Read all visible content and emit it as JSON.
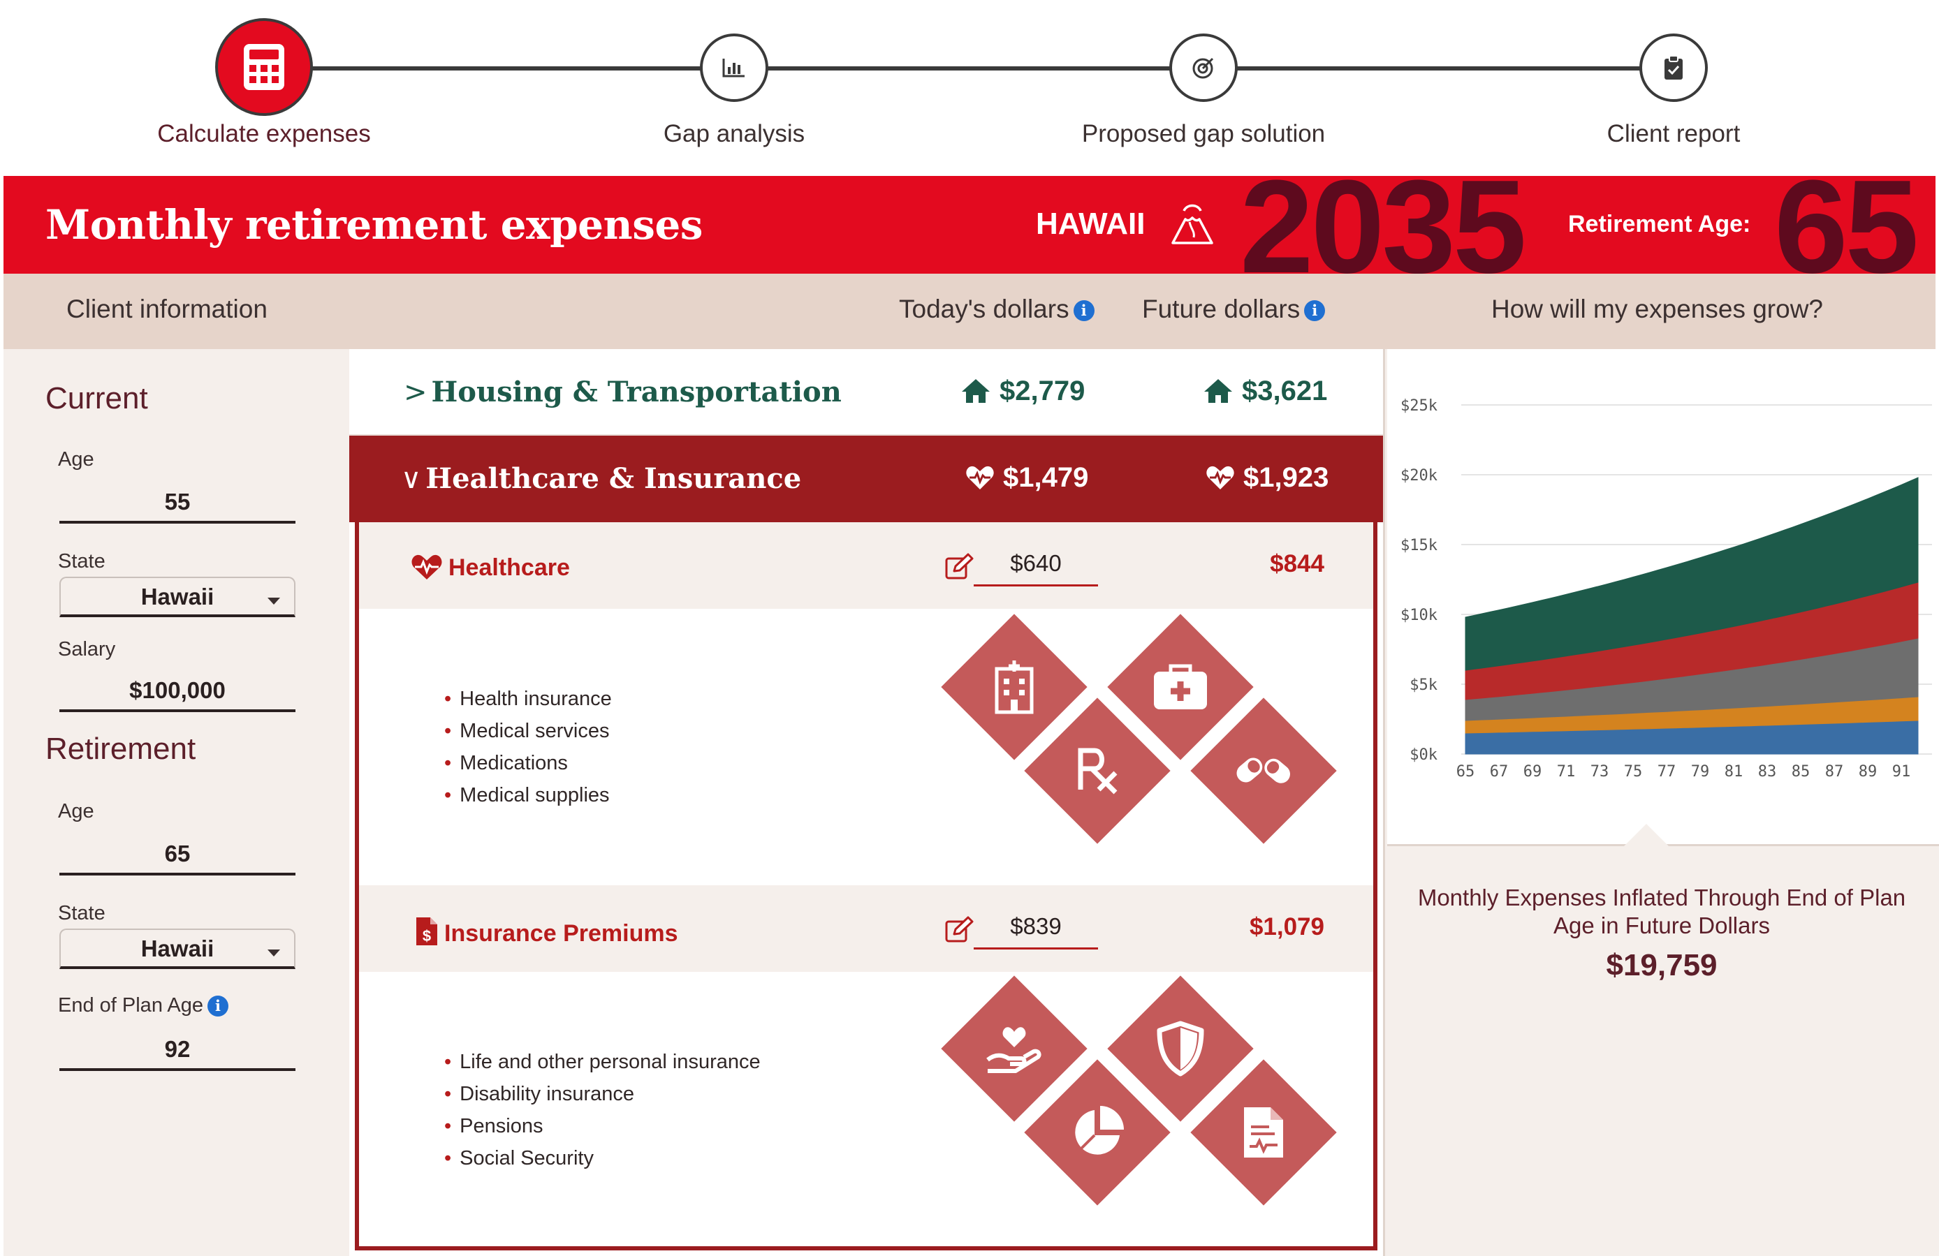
{
  "stepper": {
    "steps": [
      {
        "label": "Calculate expenses",
        "icon": "calculator-icon",
        "active": true
      },
      {
        "label": "Gap analysis",
        "icon": "bar-chart-icon",
        "active": false
      },
      {
        "label": "Proposed gap solution",
        "icon": "target-icon",
        "active": false
      },
      {
        "label": "Client report",
        "icon": "clipboard-check-icon",
        "active": false
      }
    ]
  },
  "header": {
    "title": "Monthly retirement expenses",
    "state": "HAWAII",
    "state_icon": "volcano-icon",
    "year": "2035",
    "retirement_age_label": "Retirement Age:",
    "retirement_age": "65",
    "color": "#e30a1f"
  },
  "columns": {
    "client_info": "Client information",
    "todays_dollars": "Today's dollars",
    "future_dollars": "Future dollars",
    "growth": "How will my expenses grow?"
  },
  "client": {
    "current": {
      "title": "Current",
      "age_label": "Age",
      "age": "55",
      "state_label": "State",
      "state": "Hawaii",
      "salary_label": "Salary",
      "salary": "$100,000"
    },
    "retirement": {
      "title": "Retirement",
      "age_label": "Age",
      "age": "65",
      "state_label": "State",
      "state": "Hawaii",
      "end_age_label": "End of Plan Age",
      "end_age": "92"
    }
  },
  "categories": {
    "housing": {
      "label": "Housing & Transportation",
      "today": "$2,779",
      "future": "$3,621",
      "icon": "home-icon",
      "color": "#1d5a4a"
    },
    "health": {
      "label": "Healthcare & Insurance",
      "today": "$1,479",
      "future": "$1,923",
      "icon": "heart-pulse-icon",
      "color": "#9b1c1f"
    }
  },
  "subcategories": {
    "healthcare": {
      "label": "Healthcare",
      "input": "$640",
      "future": "$844",
      "items": [
        "Health insurance",
        "Medical services",
        "Medications",
        "Medical supplies"
      ]
    },
    "premiums": {
      "label": "Insurance Premiums",
      "input": "$839",
      "future": "$1,079",
      "items": [
        "Life and other personal insurance",
        "Disability insurance",
        "Pensions",
        "Social Security"
      ]
    }
  },
  "growth": {
    "caption": "Monthly Expenses Inflated Through End of Plan Age in Future Dollars",
    "total": "$19,759"
  },
  "chart_data": {
    "type": "area",
    "stacked": true,
    "x": [
      65,
      67,
      69,
      71,
      73,
      75,
      77,
      79,
      81,
      83,
      85,
      87,
      89,
      91
    ],
    "y_ticks": [
      "$0k",
      "$5k",
      "$10k",
      "$15k",
      "$20k",
      "$25k"
    ],
    "ylim": [
      0,
      25000
    ],
    "xlim": [
      65,
      92
    ],
    "grid": true,
    "series": [
      {
        "color": "#3a6ea5",
        "start": 1500,
        "end": 2400
      },
      {
        "color": "#d4831f",
        "start": 900,
        "end": 1700
      },
      {
        "color": "#6e6e6e",
        "start": 1500,
        "end": 4200
      },
      {
        "color": "#b82a2a",
        "start": 2100,
        "end": 4000
      },
      {
        "color": "#1d5a4a",
        "start": 3800,
        "end": 7500
      }
    ]
  }
}
